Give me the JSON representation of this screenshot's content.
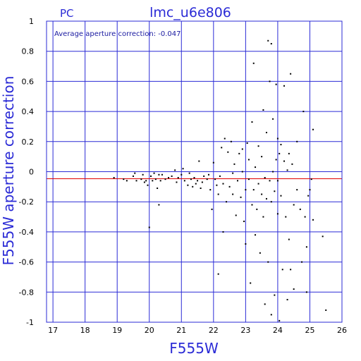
{
  "chart_data": {
    "type": "scatter",
    "title": "lmc_u6e806",
    "corner_label": "PC",
    "xlabel": "F555W",
    "ylabel": "F555W aperture correction",
    "annotation": "Average aperture correction: -0.047",
    "xlim": [
      16.8,
      26
    ],
    "ylim": [
      -1,
      1
    ],
    "x_ticks": [
      17,
      18,
      19,
      20,
      21,
      22,
      23,
      24,
      25,
      26
    ],
    "y_ticks": [
      -1,
      -0.8,
      -0.6,
      -0.4,
      -0.2,
      0,
      0.2,
      0.4,
      0.6,
      0.8,
      1
    ],
    "y_tick_labels": [
      "-1",
      "-0.8",
      "-0.6",
      "-0.4",
      "-0.2",
      "0",
      "0.2",
      "0.4",
      "0.6",
      "0.8",
      "1"
    ],
    "grid": true,
    "reference_lines": [
      {
        "y": 0,
        "color": "#2b2bd6"
      },
      {
        "y": -0.047,
        "color": "#e00000"
      }
    ],
    "colors": {
      "frame": "#2b2bd6",
      "points": "#000000",
      "average_line": "#e00000"
    },
    "points": [
      [
        18.9,
        -0.04
      ],
      [
        19.2,
        -0.05
      ],
      [
        19.3,
        -0.06
      ],
      [
        19.5,
        -0.03
      ],
      [
        19.55,
        -0.01
      ],
      [
        19.6,
        -0.06
      ],
      [
        19.75,
        -0.05
      ],
      [
        19.8,
        -0.02
      ],
      [
        19.85,
        -0.07
      ],
      [
        19.9,
        -0.06
      ],
      [
        19.95,
        -0.09
      ],
      [
        20.0,
        -0.37
      ],
      [
        20.05,
        -0.03
      ],
      [
        20.1,
        -0.06
      ],
      [
        20.15,
        -0.01
      ],
      [
        20.2,
        -0.05
      ],
      [
        20.25,
        -0.11
      ],
      [
        20.3,
        -0.02
      ],
      [
        20.3,
        -0.22
      ],
      [
        20.35,
        -0.06
      ],
      [
        20.4,
        -0.02
      ],
      [
        20.5,
        -0.05
      ],
      [
        20.6,
        -0.04
      ],
      [
        20.7,
        -0.03
      ],
      [
        20.8,
        0.01
      ],
      [
        20.85,
        -0.07
      ],
      [
        20.9,
        -0.04
      ],
      [
        21.0,
        -0.02
      ],
      [
        21.05,
        0.02
      ],
      [
        21.1,
        -0.06
      ],
      [
        21.2,
        -0.09
      ],
      [
        21.25,
        -0.01
      ],
      [
        21.3,
        -0.05
      ],
      [
        21.35,
        -0.1
      ],
      [
        21.4,
        -0.04
      ],
      [
        21.45,
        -0.08
      ],
      [
        21.5,
        -0.06
      ],
      [
        21.55,
        0.07
      ],
      [
        21.6,
        -0.11
      ],
      [
        21.65,
        -0.07
      ],
      [
        21.7,
        -0.03
      ],
      [
        21.8,
        -0.05
      ],
      [
        21.85,
        -0.02
      ],
      [
        21.9,
        -0.12
      ],
      [
        21.95,
        -0.25
      ],
      [
        22.0,
        0.06
      ],
      [
        22.05,
        -0.05
      ],
      [
        22.1,
        -0.09
      ],
      [
        22.15,
        -0.15
      ],
      [
        22.15,
        -0.68
      ],
      [
        22.2,
        -0.03
      ],
      [
        22.25,
        0.16
      ],
      [
        22.3,
        -0.08
      ],
      [
        22.3,
        -0.4
      ],
      [
        22.35,
        0.22
      ],
      [
        22.4,
        -0.2
      ],
      [
        22.45,
        0.13
      ],
      [
        22.5,
        -0.1
      ],
      [
        22.55,
        0.2
      ],
      [
        22.6,
        -0.01
      ],
      [
        22.6,
        -0.15
      ],
      [
        22.65,
        0.05
      ],
      [
        22.7,
        -0.29
      ],
      [
        22.75,
        -0.06
      ],
      [
        22.8,
        0.12
      ],
      [
        22.85,
        -0.17
      ],
      [
        22.9,
        0.0
      ],
      [
        22.9,
        0.15
      ],
      [
        22.95,
        -0.33
      ],
      [
        23.0,
        -0.12
      ],
      [
        23.0,
        -0.48
      ],
      [
        23.05,
        0.19
      ],
      [
        23.1,
        -0.05
      ],
      [
        23.1,
        0.08
      ],
      [
        23.15,
        -0.74
      ],
      [
        23.2,
        -0.22
      ],
      [
        23.2,
        0.33
      ],
      [
        23.25,
        -0.12
      ],
      [
        23.25,
        0.72
      ],
      [
        23.3,
        -0.42
      ],
      [
        23.3,
        0.03
      ],
      [
        23.35,
        -0.25
      ],
      [
        23.4,
        -0.08
      ],
      [
        23.4,
        0.17
      ],
      [
        23.45,
        -0.54
      ],
      [
        23.5,
        -0.15
      ],
      [
        23.5,
        0.1
      ],
      [
        23.55,
        0.41
      ],
      [
        23.55,
        -0.3
      ],
      [
        23.6,
        -0.04
      ],
      [
        23.6,
        -0.88
      ],
      [
        23.65,
        -0.18
      ],
      [
        23.65,
        0.26
      ],
      [
        23.7,
        0.87
      ],
      [
        23.7,
        -0.6
      ],
      [
        23.75,
        -0.06
      ],
      [
        23.75,
        0.6
      ],
      [
        23.8,
        0.85
      ],
      [
        23.8,
        -0.2
      ],
      [
        23.8,
        -0.95
      ],
      [
        23.85,
        0.0
      ],
      [
        23.85,
        0.35
      ],
      [
        23.9,
        -0.13
      ],
      [
        23.9,
        -0.82
      ],
      [
        23.95,
        0.08
      ],
      [
        23.95,
        0.58
      ],
      [
        24.0,
        -0.06
      ],
      [
        24.0,
        0.22
      ],
      [
        24.0,
        -0.28
      ],
      [
        24.05,
        0.12
      ],
      [
        24.05,
        -0.99
      ],
      [
        24.1,
        -0.16
      ],
      [
        24.1,
        0.18
      ],
      [
        24.15,
        -0.65
      ],
      [
        24.2,
        0.07
      ],
      [
        24.2,
        0.57
      ],
      [
        24.25,
        -0.3
      ],
      [
        24.3,
        -0.85
      ],
      [
        24.3,
        0.01
      ],
      [
        24.35,
        0.12
      ],
      [
        24.35,
        -0.45
      ],
      [
        24.4,
        0.65
      ],
      [
        24.4,
        -0.65
      ],
      [
        24.45,
        0.05
      ],
      [
        24.5,
        -0.22
      ],
      [
        24.5,
        -0.78
      ],
      [
        24.6,
        0.2
      ],
      [
        24.6,
        -0.12
      ],
      [
        24.7,
        -0.25
      ],
      [
        24.75,
        -0.6
      ],
      [
        24.8,
        0.4
      ],
      [
        24.85,
        -0.3
      ],
      [
        24.9,
        -0.5
      ],
      [
        24.9,
        -0.8
      ],
      [
        24.95,
        -0.16
      ],
      [
        25.0,
        -0.12
      ],
      [
        25.05,
        -0.05
      ],
      [
        25.1,
        0.28
      ],
      [
        25.1,
        -0.32
      ],
      [
        25.4,
        -0.43
      ],
      [
        25.5,
        -0.92
      ]
    ]
  }
}
